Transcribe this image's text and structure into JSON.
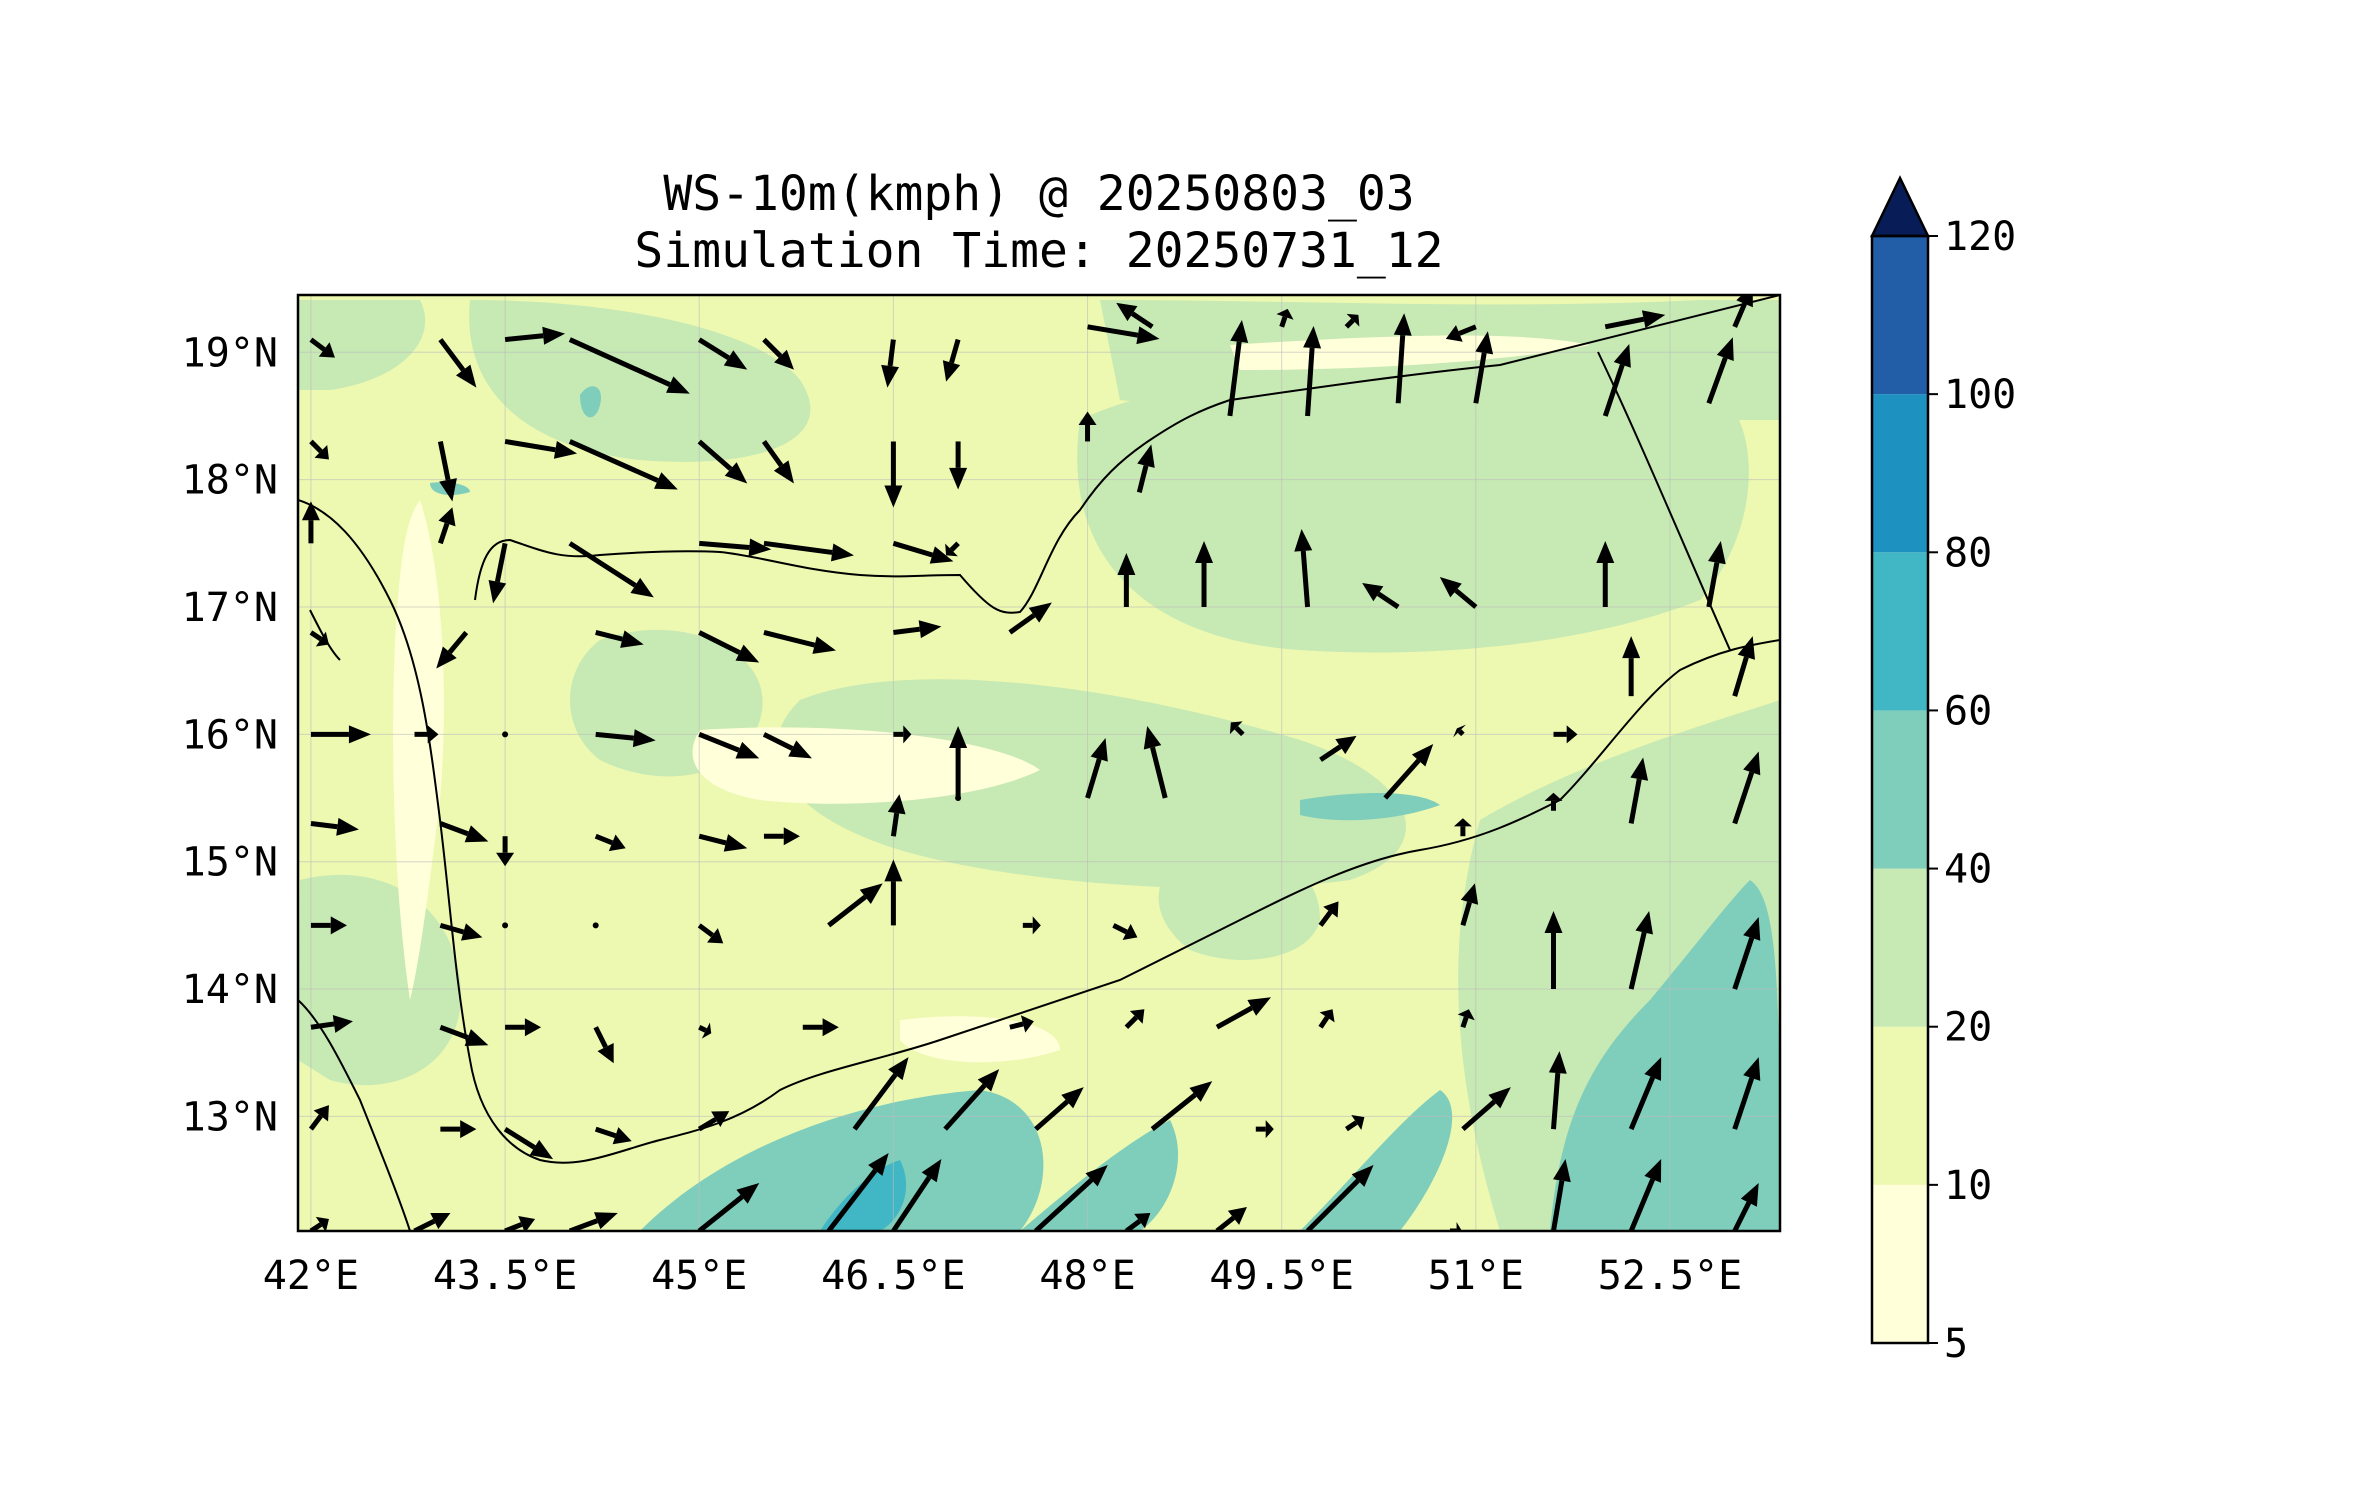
{
  "title": {
    "line1": "WS-10m(kmph) @ 20250803_03",
    "line2": "Simulation Time: 20250731_12"
  },
  "map": {
    "region": "Yemen / southern Arabian Peninsula",
    "lon_range": [
      41.9,
      53.35
    ],
    "lat_range": [
      12.1,
      19.45
    ],
    "x_ticks": [
      {
        "value": 42,
        "label": "42°E"
      },
      {
        "value": 43.5,
        "label": "43.5°E"
      },
      {
        "value": 45,
        "label": "45°E"
      },
      {
        "value": 46.5,
        "label": "46.5°E"
      },
      {
        "value": 48,
        "label": "48°E"
      },
      {
        "value": 49.5,
        "label": "49.5°E"
      },
      {
        "value": 51,
        "label": "51°E"
      },
      {
        "value": 52.5,
        "label": "52.5°E"
      }
    ],
    "y_ticks": [
      {
        "value": 13,
        "label": "13°N"
      },
      {
        "value": 14,
        "label": "14°N"
      },
      {
        "value": 15,
        "label": "15°N"
      },
      {
        "value": 16,
        "label": "16°N"
      },
      {
        "value": 17,
        "label": "17°N"
      },
      {
        "value": 18,
        "label": "18°N"
      },
      {
        "value": 19,
        "label": "19°N"
      }
    ],
    "grid": true
  },
  "colorbar": {
    "extend": "max",
    "levels": [
      {
        "label": "5",
        "value": 5,
        "color": "#ffffd9"
      },
      {
        "label": "10",
        "value": 10,
        "color": "#edf8b1"
      },
      {
        "label": "20",
        "value": 20,
        "color": "#c7e9b4"
      },
      {
        "label": "40",
        "value": 40,
        "color": "#7fcdbb"
      },
      {
        "label": "60",
        "value": 60,
        "color": "#41b6c4"
      },
      {
        "label": "80",
        "value": 80,
        "color": "#1d91c0"
      },
      {
        "label": "100",
        "value": 100,
        "color": "#225ea8"
      },
      {
        "label": "120",
        "value": 120,
        "color": "#253494"
      }
    ],
    "extend_color": "#081d58"
  },
  "wind_vectors": [
    [
      42.0,
      19.1,
      0.4,
      -0.3
    ],
    [
      43.0,
      19.1,
      0.6,
      -0.8
    ],
    [
      43.5,
      19.1,
      1.0,
      0.1
    ],
    [
      44.0,
      19.1,
      2.0,
      -0.9
    ],
    [
      45.0,
      19.1,
      0.8,
      -0.5
    ],
    [
      45.5,
      19.1,
      0.5,
      -0.5
    ],
    [
      46.5,
      19.1,
      -0.1,
      -0.8
    ],
    [
      47.0,
      19.1,
      -0.2,
      -0.7
    ],
    [
      48.0,
      19.2,
      1.2,
      -0.2
    ],
    [
      48.5,
      19.2,
      -0.6,
      0.4
    ],
    [
      49.5,
      19.2,
      0.1,
      0.3
    ],
    [
      50.0,
      19.2,
      0.2,
      0.2
    ],
    [
      51.0,
      19.2,
      -0.5,
      -0.2
    ],
    [
      52.0,
      19.2,
      1.0,
      0.2
    ],
    [
      53.0,
      19.2,
      0.3,
      0.7
    ],
    [
      42.0,
      18.3,
      0.3,
      -0.3
    ],
    [
      43.0,
      18.3,
      0.2,
      -1.0
    ],
    [
      43.5,
      18.3,
      1.2,
      -0.2
    ],
    [
      44.0,
      18.3,
      1.8,
      -0.8
    ],
    [
      45.0,
      18.3,
      0.8,
      -0.7
    ],
    [
      45.5,
      18.3,
      0.5,
      -0.7
    ],
    [
      46.5,
      18.3,
      0.0,
      -1.1
    ],
    [
      47.0,
      18.3,
      0.0,
      -0.8
    ],
    [
      48.0,
      18.3,
      0.0,
      0.5
    ],
    [
      48.4,
      17.9,
      0.2,
      0.8
    ],
    [
      49.1,
      18.5,
      0.2,
      1.6
    ],
    [
      49.7,
      18.5,
      0.1,
      1.5
    ],
    [
      50.4,
      18.6,
      0.1,
      1.5
    ],
    [
      51.0,
      18.6,
      0.2,
      1.2
    ],
    [
      52.0,
      18.5,
      0.4,
      1.2
    ],
    [
      52.8,
      18.6,
      0.4,
      1.1
    ],
    [
      42.0,
      17.5,
      0.0,
      0.7
    ],
    [
      43.0,
      17.5,
      0.2,
      0.6
    ],
    [
      43.5,
      17.5,
      -0.2,
      -1.0
    ],
    [
      44.0,
      17.5,
      1.4,
      -0.9
    ],
    [
      45.0,
      17.5,
      1.2,
      -0.1
    ],
    [
      45.5,
      17.5,
      1.5,
      -0.2
    ],
    [
      46.5,
      17.5,
      1.0,
      -0.3
    ],
    [
      47.0,
      17.5,
      -0.2,
      -0.2
    ],
    [
      48.3,
      17.0,
      0.0,
      0.9
    ],
    [
      48.9,
      17.0,
      0.0,
      1.1
    ],
    [
      49.7,
      17.0,
      -0.1,
      1.3
    ],
    [
      50.4,
      17.0,
      -0.6,
      0.4
    ],
    [
      51.0,
      17.0,
      -0.6,
      0.5
    ],
    [
      52.0,
      17.0,
      0.0,
      1.1
    ],
    [
      52.8,
      17.0,
      0.2,
      1.1
    ],
    [
      42.0,
      16.8,
      0.3,
      -0.2
    ],
    [
      43.2,
      16.8,
      -0.5,
      -0.6
    ],
    [
      44.2,
      16.8,
      0.8,
      -0.2
    ],
    [
      45.0,
      16.8,
      1.0,
      -0.5
    ],
    [
      45.5,
      16.8,
      1.2,
      -0.3
    ],
    [
      46.5,
      16.8,
      0.8,
      0.1
    ],
    [
      47.4,
      16.8,
      0.7,
      0.5
    ],
    [
      42.0,
      16.0,
      1.0,
      0.0
    ],
    [
      42.8,
      16.0,
      0.4,
      0.0
    ],
    [
      43.5,
      16.0,
      0.0,
      0.0
    ],
    [
      44.2,
      16.0,
      1.0,
      -0.1
    ],
    [
      45.0,
      16.0,
      1.0,
      -0.4
    ],
    [
      45.5,
      16.0,
      0.8,
      -0.4
    ],
    [
      46.5,
      16.0,
      0.3,
      0.0
    ],
    [
      47.0,
      15.5,
      0.0,
      1.2
    ],
    [
      48.0,
      15.5,
      0.3,
      1.0
    ],
    [
      48.6,
      15.5,
      -0.3,
      1.2
    ],
    [
      49.2,
      16.0,
      -0.2,
      0.2
    ],
    [
      49.8,
      15.8,
      0.6,
      0.4
    ],
    [
      50.3,
      15.5,
      0.8,
      0.9
    ],
    [
      50.9,
      16.0,
      -0.1,
      0.1
    ],
    [
      51.6,
      16.0,
      0.4,
      0.0
    ],
    [
      52.2,
      16.3,
      0.0,
      1.0
    ],
    [
      53.0,
      16.3,
      0.3,
      1.0
    ],
    [
      42.0,
      15.3,
      0.8,
      -0.1
    ],
    [
      43.0,
      15.3,
      0.8,
      -0.3
    ],
    [
      43.5,
      15.2,
      0.0,
      -0.5
    ],
    [
      44.2,
      15.2,
      0.5,
      -0.2
    ],
    [
      45.0,
      15.2,
      0.8,
      -0.2
    ],
    [
      45.5,
      15.2,
      0.6,
      0.0
    ],
    [
      46.5,
      15.2,
      0.1,
      0.7
    ],
    [
      47.0,
      15.5,
      0.0,
      0.0
    ],
    [
      50.9,
      15.2,
      0.0,
      0.3
    ],
    [
      51.6,
      15.4,
      0.0,
      0.3
    ],
    [
      52.2,
      15.3,
      0.2,
      1.1
    ],
    [
      53.0,
      15.3,
      0.4,
      1.2
    ],
    [
      42.0,
      14.5,
      0.6,
      0.0
    ],
    [
      43.0,
      14.5,
      0.7,
      -0.2
    ],
    [
      43.5,
      14.5,
      0.0,
      0.0
    ],
    [
      44.2,
      14.5,
      0.0,
      0.0
    ],
    [
      45.0,
      14.5,
      0.4,
      -0.3
    ],
    [
      46.0,
      14.5,
      0.9,
      0.7
    ],
    [
      46.5,
      14.5,
      0.0,
      1.1
    ],
    [
      47.5,
      14.5,
      0.3,
      0.0
    ],
    [
      48.2,
      14.5,
      0.4,
      -0.2
    ],
    [
      49.8,
      14.5,
      0.3,
      0.4
    ],
    [
      50.9,
      14.5,
      0.2,
      0.7
    ],
    [
      51.6,
      14.0,
      0.0,
      1.3
    ],
    [
      52.2,
      14.0,
      0.3,
      1.3
    ],
    [
      53.0,
      14.0,
      0.4,
      1.2
    ],
    [
      42.0,
      13.7,
      0.7,
      0.1
    ],
    [
      43.0,
      13.7,
      0.8,
      -0.3
    ],
    [
      43.5,
      13.7,
      0.6,
      0.0
    ],
    [
      44.2,
      13.7,
      0.3,
      -0.6
    ],
    [
      45.0,
      13.7,
      0.2,
      -0.1
    ],
    [
      45.8,
      13.7,
      0.6,
      0.0
    ],
    [
      46.2,
      12.9,
      0.9,
      1.2
    ],
    [
      46.9,
      12.9,
      0.9,
      1.0
    ],
    [
      47.4,
      13.7,
      0.4,
      0.1
    ],
    [
      48.3,
      13.7,
      0.3,
      0.3
    ],
    [
      49.0,
      13.7,
      0.9,
      0.5
    ],
    [
      49.8,
      13.7,
      0.2,
      0.3
    ],
    [
      50.9,
      13.7,
      0.1,
      0.3
    ],
    [
      51.6,
      12.9,
      0.1,
      1.3
    ],
    [
      52.2,
      12.9,
      0.5,
      1.2
    ],
    [
      53.0,
      12.9,
      0.4,
      1.2
    ],
    [
      42.0,
      12.9,
      0.3,
      0.4
    ],
    [
      43.0,
      12.9,
      0.6,
      0.0
    ],
    [
      43.5,
      12.9,
      0.8,
      -0.5
    ],
    [
      44.2,
      12.9,
      0.6,
      -0.2
    ],
    [
      45.0,
      12.9,
      0.5,
      0.3
    ],
    [
      47.6,
      12.9,
      0.8,
      0.7
    ],
    [
      48.5,
      12.9,
      1.0,
      0.8
    ],
    [
      49.3,
      12.9,
      0.3,
      0.0
    ],
    [
      50.0,
      12.9,
      0.3,
      0.2
    ],
    [
      50.9,
      12.9,
      0.8,
      0.7
    ],
    [
      42.0,
      12.1,
      0.3,
      0.2
    ],
    [
      42.8,
      12.1,
      0.6,
      0.3
    ],
    [
      43.5,
      12.1,
      0.5,
      0.2
    ],
    [
      44.0,
      12.1,
      0.8,
      0.3
    ],
    [
      45.0,
      12.1,
      1.0,
      0.8
    ],
    [
      46.0,
      12.1,
      1.0,
      1.3
    ],
    [
      46.5,
      12.1,
      0.8,
      1.2
    ],
    [
      47.6,
      12.1,
      1.2,
      1.1
    ],
    [
      48.3,
      12.1,
      0.4,
      0.3
    ],
    [
      49.0,
      12.1,
      0.5,
      0.4
    ],
    [
      49.7,
      12.1,
      1.1,
      1.1
    ],
    [
      50.8,
      12.1,
      0.2,
      0.0
    ],
    [
      51.6,
      12.1,
      0.2,
      1.2
    ],
    [
      52.2,
      12.1,
      0.5,
      1.2
    ],
    [
      53.0,
      12.1,
      0.4,
      0.8
    ]
  ]
}
